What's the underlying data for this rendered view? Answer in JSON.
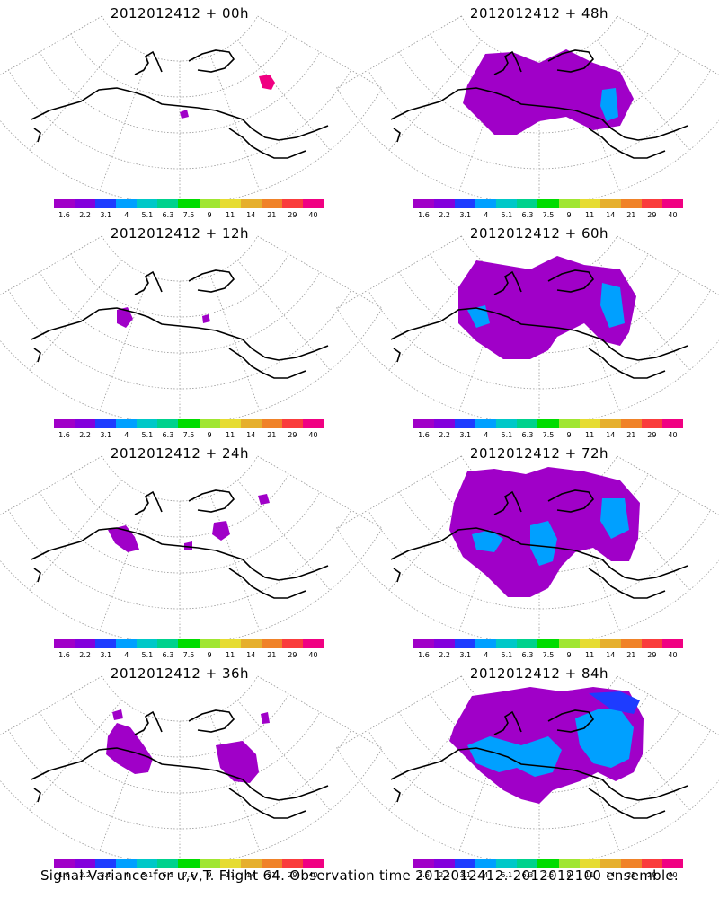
{
  "panels": [
    {
      "title": "2012012412 + 00h",
      "forecast_hour": 0
    },
    {
      "title": "2012012412 + 48h",
      "forecast_hour": 48
    },
    {
      "title": "2012012412 + 12h",
      "forecast_hour": 12
    },
    {
      "title": "2012012412 + 60h",
      "forecast_hour": 60
    },
    {
      "title": "2012012412 + 24h",
      "forecast_hour": 24
    },
    {
      "title": "2012012412 + 72h",
      "forecast_hour": 72
    },
    {
      "title": "2012012412 + 36h",
      "forecast_hour": 36
    },
    {
      "title": "2012012412 + 84h",
      "forecast_hour": 84
    }
  ],
  "colorbar": {
    "labels": [
      "1.6",
      "2.2",
      "3.1",
      "4",
      "5.1",
      "6.3",
      "7.5",
      "9",
      "11",
      "14",
      "21",
      "29",
      "40"
    ],
    "colors": [
      "#a000c8",
      "#8200dc",
      "#1e3cff",
      "#00a0ff",
      "#00c8c8",
      "#00d28c",
      "#00dc00",
      "#a0e632",
      "#e6dc32",
      "#e6af2d",
      "#f08228",
      "#fa3c3c",
      "#f00082"
    ]
  },
  "footer": "Signal Variance for u,v,T. Flight 64. Observation time 2012012412. 2012012100 ensemble."
}
